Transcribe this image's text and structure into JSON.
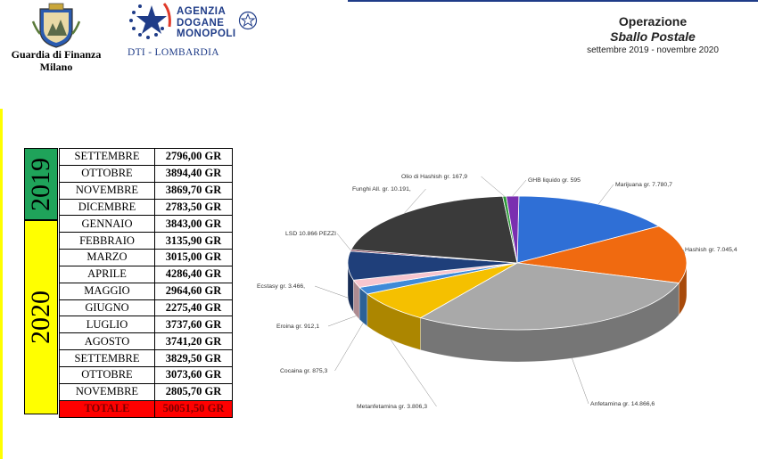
{
  "header": {
    "gdf_name": "Guardia di Finanza",
    "gdf_city": "Milano",
    "adm_line1": "AGENZIA",
    "adm_line2": "DOGANE",
    "adm_line3": "MONOPOLI",
    "adm_dti": "DTI - LOMBARDIA",
    "title": "Operazione",
    "subtitle": "Sballo Postale",
    "period": "settembre 2019 - novembre 2020"
  },
  "years": {
    "y2019": "2019",
    "y2020": "2020"
  },
  "colors": {
    "year2019": "#1fa35a",
    "year2020": "#ffff00",
    "total": "#ff0000",
    "brand": "#1f3c88"
  },
  "table": {
    "rows": [
      {
        "month": "SETTEMBRE",
        "value": "2796,00 GR"
      },
      {
        "month": "OTTOBRE",
        "value": "3894,40 GR"
      },
      {
        "month": "NOVEMBRE",
        "value": "3869,70 GR"
      },
      {
        "month": "DICEMBRE",
        "value": "2783,50 GR"
      },
      {
        "month": "GENNAIO",
        "value": "3843,00 GR"
      },
      {
        "month": "FEBBRAIO",
        "value": "3135,90 GR"
      },
      {
        "month": "MARZO",
        "value": "3015,00 GR"
      },
      {
        "month": "APRILE",
        "value": "4286,40 GR"
      },
      {
        "month": "MAGGIO",
        "value": "2964,60 GR"
      },
      {
        "month": "GIUGNO",
        "value": "2275,40 GR"
      },
      {
        "month": "LUGLIO",
        "value": "3737,60 GR"
      },
      {
        "month": "AGOSTO",
        "value": "3741,20 GR"
      },
      {
        "month": "SETTEMBRE",
        "value": "3829,50 GR"
      },
      {
        "month": "OTTOBRE",
        "value": "3073,60 GR"
      },
      {
        "month": "NOVEMBRE",
        "value": "2805,70 GR"
      }
    ],
    "total_label": "TOTALE",
    "total_value": "50051,50 GR"
  },
  "chart_data": {
    "type": "pie",
    "slices": [
      {
        "label": "Marijuana gr. 7.780,7",
        "value": 7780.7,
        "color": "#2f6fd6"
      },
      {
        "label": "Hashish gr. 7.045,4",
        "value": 7045.4,
        "color": "#f06a10"
      },
      {
        "label": "Anfetamina gr. 14.866,6",
        "value": 14866.6,
        "color": "#a9a9a9"
      },
      {
        "label": "Metanfetamina gr. 3.806,3",
        "value": 3806.3,
        "color": "#f5c000"
      },
      {
        "label": "Cocaina gr. 875,3",
        "value": 875.3,
        "color": "#3f8ad8"
      },
      {
        "label": "Eroina gr. 912,1",
        "value": 912.1,
        "color": "#f7c6cf"
      },
      {
        "label": "Ecstasy gr. 3.466,",
        "value": 3466,
        "color": "#1f3f7a"
      },
      {
        "label": "LSD 10.866 PEZZI",
        "value": 0,
        "color": "#6b1f3a"
      },
      {
        "label": "Funghi All. gr. 10.191,",
        "value": 10191,
        "color": "#3a3a3a"
      },
      {
        "label": "Olio di Hashish gr. 167,9",
        "value": 167.9,
        "color": "#2e9a3a"
      },
      {
        "label": "GHB liquido gr. 595",
        "value": 595,
        "color": "#7a2fb0"
      }
    ]
  }
}
